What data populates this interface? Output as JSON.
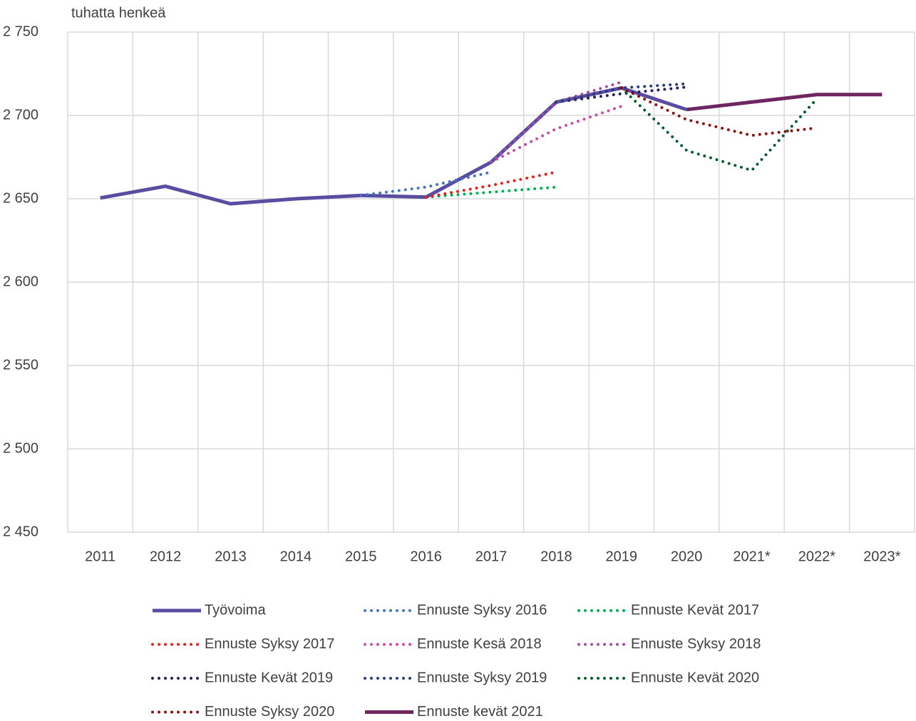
{
  "chart_data": {
    "type": "line",
    "y_axis_label": "tuhatta henkeä",
    "categories": [
      "2011",
      "2012",
      "2013",
      "2014",
      "2015",
      "2016",
      "2017",
      "2018",
      "2019",
      "2020",
      "2021*",
      "2022*",
      "2023*"
    ],
    "ylim": [
      2450,
      2750
    ],
    "yticks": [
      {
        "value": 2450,
        "label": "2 450"
      },
      {
        "value": 2500,
        "label": "2 500"
      },
      {
        "value": 2550,
        "label": "2 550"
      },
      {
        "value": 2600,
        "label": "2 600"
      },
      {
        "value": 2650,
        "label": "2 650"
      },
      {
        "value": 2700,
        "label": "2 700"
      },
      {
        "value": 2750,
        "label": "2 750"
      }
    ],
    "grid": true,
    "legend": "bottom",
    "series": [
      {
        "name": "Työvoima",
        "color": "#5a4ca0",
        "style": "solid",
        "values": [
          2650.5,
          2657.5,
          2647,
          2650,
          2652,
          2651,
          2672,
          2708,
          2716.5,
          2703.5,
          null,
          null,
          null
        ]
      },
      {
        "name": "Ennuste Syksy 2016",
        "color": "#4472c4",
        "style": "dotted",
        "values": [
          null,
          null,
          null,
          null,
          2652,
          2657,
          2666,
          null,
          null,
          null,
          null,
          null,
          null
        ]
      },
      {
        "name": "Ennuste Kevät 2017",
        "color": "#00b050",
        "style": "dotted",
        "values": [
          null,
          null,
          null,
          null,
          null,
          2651,
          2654,
          2657,
          null,
          null,
          null,
          null,
          null
        ]
      },
      {
        "name": "Ennuste Syksy 2017",
        "color": "#e8201a",
        "style": "dotted",
        "values": [
          null,
          null,
          null,
          null,
          null,
          2651,
          2658,
          2666,
          null,
          null,
          null,
          null,
          null
        ]
      },
      {
        "name": "Ennuste Kesä 2018",
        "color": "#cc4aa8",
        "style": "dotted",
        "values": [
          null,
          null,
          null,
          null,
          null,
          null,
          2672,
          2692,
          2705.5,
          null,
          null,
          null,
          null
        ]
      },
      {
        "name": "Ennuste Syksy 2018",
        "color": "#9e4fa5",
        "style": "dotted",
        "values": [
          null,
          null,
          null,
          null,
          null,
          null,
          2672,
          2708,
          2720,
          null,
          null,
          null,
          null
        ]
      },
      {
        "name": "Ennuste Kevät 2019",
        "color": "#202060",
        "style": "dotted",
        "values": [
          null,
          null,
          null,
          null,
          null,
          null,
          null,
          2708,
          2713,
          2717,
          null,
          null,
          null
        ]
      },
      {
        "name": "Ennuste Syksy 2019",
        "color": "#2b3a7a",
        "style": "dotted",
        "values": [
          null,
          null,
          null,
          null,
          null,
          null,
          null,
          2708,
          2716.5,
          2719,
          null,
          null,
          null
        ]
      },
      {
        "name": "Ennuste Kevät 2020",
        "color": "#00602b",
        "style": "dotted",
        "values": [
          null,
          null,
          null,
          null,
          null,
          null,
          null,
          null,
          2716.5,
          2679,
          2667,
          2710,
          null
        ]
      },
      {
        "name": "Ennuste Syksy 2020",
        "color": "#8b1010",
        "style": "dotted",
        "values": [
          null,
          null,
          null,
          null,
          null,
          null,
          null,
          null,
          2716.5,
          2697.5,
          2688,
          2692.5,
          null
        ]
      },
      {
        "name": "Ennuste kevät 2021",
        "color": "#6e2660",
        "style": "solid",
        "values": [
          null,
          null,
          null,
          null,
          null,
          null,
          null,
          null,
          null,
          2703.5,
          2708,
          2712.5,
          2712.5
        ]
      }
    ]
  }
}
